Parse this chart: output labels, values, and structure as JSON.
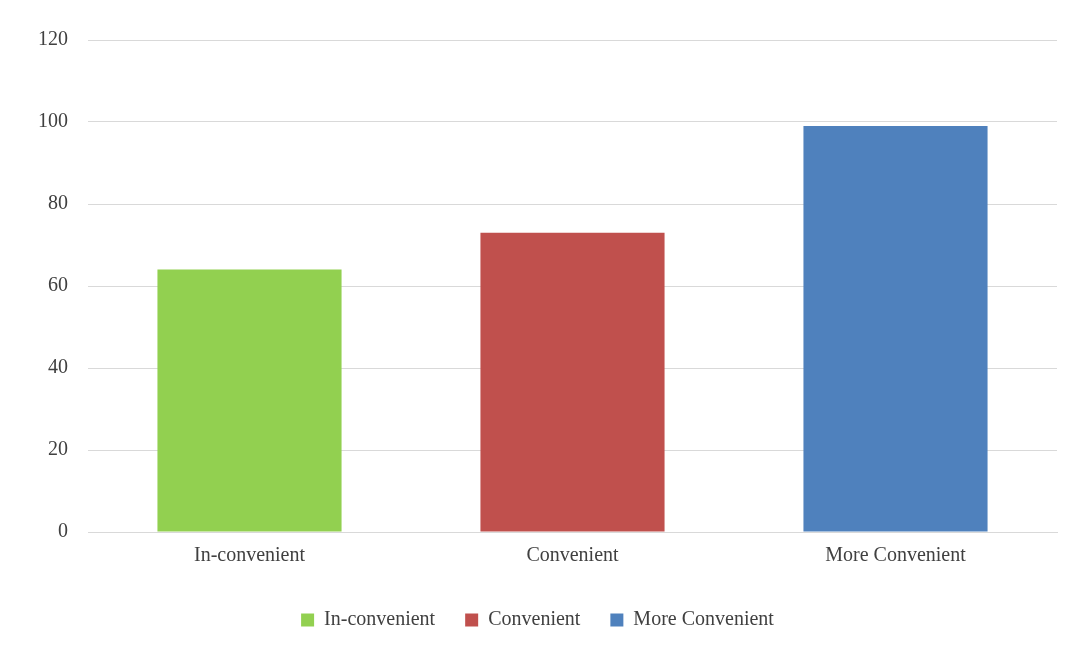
{
  "chart_data": {
    "type": "bar",
    "categories": [
      "In-convenient",
      "Convenient",
      "More Convenient"
    ],
    "series": [
      {
        "name": "In-convenient",
        "color": "#92d050",
        "values": [
          64,
          null,
          null
        ]
      },
      {
        "name": "Convenient",
        "color": "#c0504d",
        "values": [
          null,
          73,
          null
        ]
      },
      {
        "name": "More Convenient",
        "color": "#4f81bd",
        "values": [
          null,
          null,
          99
        ]
      }
    ],
    "ylim": [
      0,
      120
    ],
    "yticks": [
      0,
      20,
      40,
      60,
      80,
      100,
      120
    ],
    "grid": "y",
    "legend": "bottom"
  }
}
